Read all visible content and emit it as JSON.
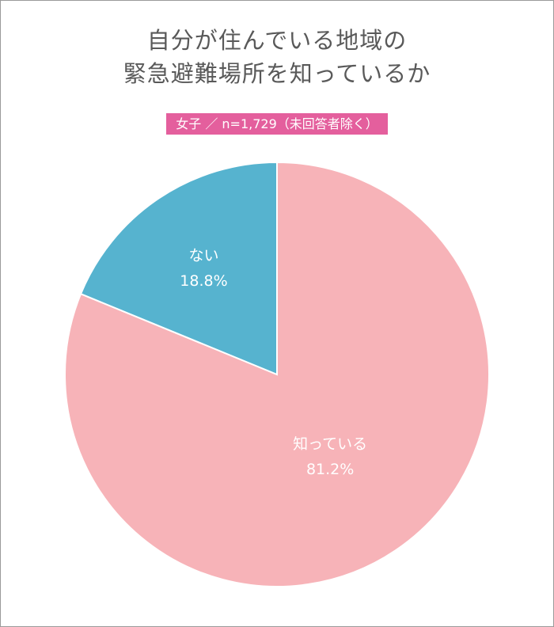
{
  "chart_data": {
    "type": "pie",
    "title": "自分が住んでいる地域の\n緊急避難場所を知っているか",
    "title_lines": [
      "自分が住んでいる地域の",
      "緊急避難場所を知っているか"
    ],
    "subtitle": "女子 ／ n=1,729（未回答者除く）",
    "slices": [
      {
        "label": "知っている",
        "value": 81.2,
        "value_text": "81.2%",
        "color": "#f7b3b8"
      },
      {
        "label": "ない",
        "value": 18.8,
        "value_text": "18.8%",
        "color": "#56b3cf"
      }
    ]
  }
}
